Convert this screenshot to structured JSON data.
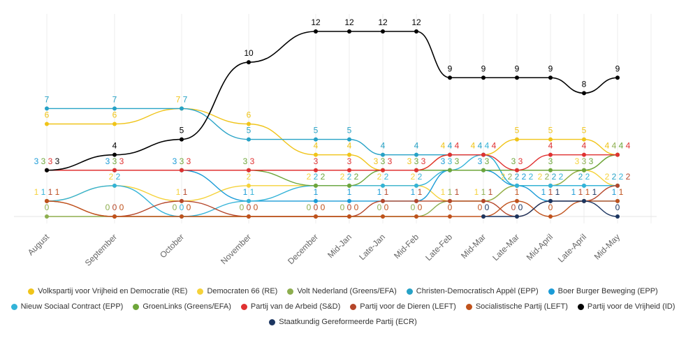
{
  "chart_data": {
    "type": "line",
    "categories": [
      "August",
      "September",
      "October",
      "November",
      "December",
      "Mid-Jan",
      "Late-Jan",
      "Mid-Feb",
      "Late-Feb",
      "Mid-Mar",
      "Late-Mar",
      "Mid-April",
      "Late-April",
      "Mid-May"
    ],
    "ylim": [
      0,
      12
    ],
    "grid": "vertical",
    "legend_placement": "bottom",
    "series": [
      {
        "name": "Volkspartij voor Vrijheid en Democratie (RE)",
        "color": "#f0c419",
        "values": [
          6,
          6,
          7,
          6,
          4,
          4,
          3,
          3,
          4,
          4,
          5,
          5,
          5,
          4
        ]
      },
      {
        "name": "Democraten 66 (RE)",
        "color": "#f5d23a",
        "values": [
          1,
          2,
          1,
          2,
          2,
          2,
          2,
          2,
          1,
          1,
          2,
          2,
          3,
          2
        ]
      },
      {
        "name": "Volt Nederland (Greens/EFA)",
        "color": "#8dae4f",
        "values": [
          0,
          0,
          0,
          0,
          0,
          0,
          0,
          0,
          1,
          1,
          2,
          2,
          3,
          4
        ]
      },
      {
        "name": "Christen-Democratisch Appèl (EPP)",
        "color": "#27a2c6",
        "values": [
          7,
          7,
          7,
          5,
          5,
          5,
          4,
          4,
          4,
          4,
          2,
          2,
          2,
          2
        ]
      },
      {
        "name": "Boer Burger Beweging (EPP)",
        "color": "#1a9bd7",
        "values": [
          3,
          3,
          3,
          1,
          1,
          1,
          1,
          1,
          3,
          3,
          2,
          1,
          1,
          1
        ]
      },
      {
        "name": "Nieuw Sociaal Contract (EPP)",
        "color": "#33b3d8",
        "values": [
          1,
          2,
          0,
          1,
          2,
          2,
          2,
          2,
          3,
          4,
          2,
          2,
          2,
          2
        ]
      },
      {
        "name": "GroenLinks (Greens/EFA)",
        "color": "#6ea63a",
        "values": [
          3,
          3,
          3,
          3,
          2,
          2,
          3,
          3,
          3,
          3,
          3,
          3,
          3,
          4
        ]
      },
      {
        "name": "Partij van de Arbeid (S&D)",
        "color": "#e03131",
        "values": [
          3,
          3,
          3,
          3,
          3,
          3,
          3,
          3,
          4,
          4,
          3,
          4,
          4,
          4
        ]
      },
      {
        "name": "Partij voor de Dieren (LEFT)",
        "color": "#b5462a",
        "values": [
          1,
          0,
          1,
          0,
          0,
          0,
          1,
          1,
          1,
          1,
          0,
          1,
          1,
          2
        ]
      },
      {
        "name": "Socialistische Partij (LEFT)",
        "color": "#c0521c",
        "values": [
          1,
          0,
          0,
          0,
          0,
          0,
          0,
          0,
          0,
          0,
          1,
          0,
          1,
          1
        ]
      },
      {
        "name": "Partij voor de Vrijheid (ID)",
        "color": "#000000",
        "values": [
          3,
          4,
          5,
          10,
          12,
          12,
          12,
          12,
          9,
          9,
          9,
          9,
          8,
          9
        ]
      },
      {
        "name": "Staatkundig Gereformeerde Partij (ECR)",
        "color": "#1c3661",
        "values": [
          null,
          null,
          null,
          null,
          null,
          null,
          null,
          null,
          null,
          0,
          0,
          1,
          1,
          0
        ]
      }
    ]
  }
}
